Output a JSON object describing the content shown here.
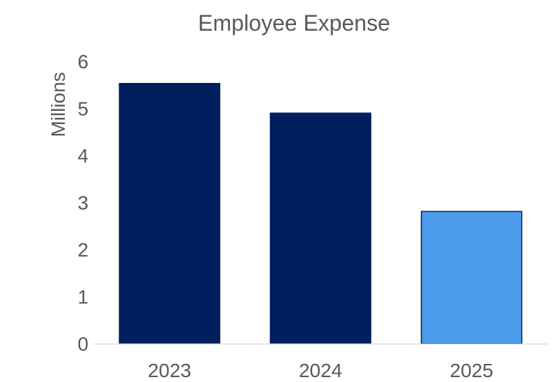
{
  "chart_data": {
    "type": "bar",
    "title": "Employee Expense",
    "xlabel": "",
    "ylabel": "Millions",
    "categories": [
      "2023",
      "2024",
      "2025"
    ],
    "values": [
      5.53,
      4.9,
      2.81
    ],
    "ylim": [
      0,
      6
    ],
    "yticks": [
      "0",
      "1",
      "2",
      "3",
      "4",
      "5",
      "6"
    ],
    "grid": false,
    "legend": "none",
    "colors": [
      "#001f5c",
      "#001f5c",
      "#4c9aea"
    ],
    "bar_border": "#001f5c"
  }
}
